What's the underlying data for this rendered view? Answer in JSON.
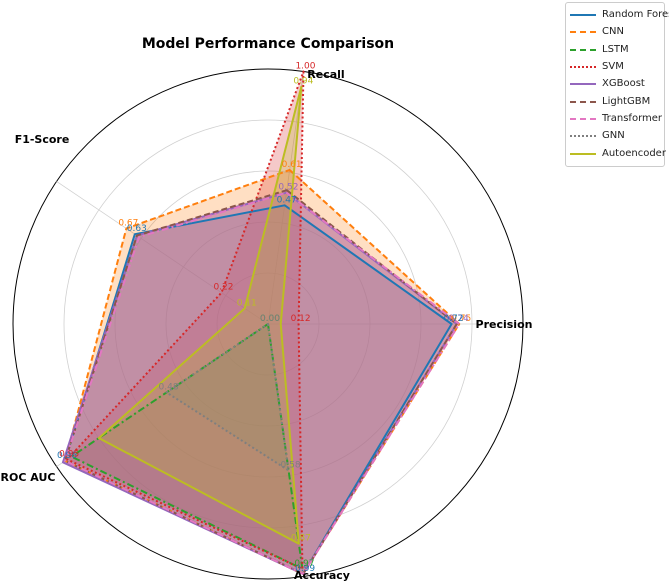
{
  "chart_data": {
    "type": "radar",
    "title": "Model Performance Comparison",
    "axes": [
      "Recall",
      "Precision",
      "Accuracy",
      "ROC AUC",
      "F1-Score"
    ],
    "rlim": [
      0,
      1
    ],
    "grid": true,
    "legend_position": "top-right",
    "series": [
      {
        "name": "Random Forest",
        "color": "#1f77b4",
        "dash": "solid",
        "values": [
          0.47,
          0.72,
          0.99,
          0.96,
          0.63
        ]
      },
      {
        "name": "CNN",
        "color": "#ff7f0e",
        "dash": "dashed",
        "values": [
          0.61,
          0.75,
          0.99,
          0.96,
          0.67
        ]
      },
      {
        "name": "LSTM",
        "color": "#2ca02c",
        "dash": "dashdot",
        "values": [
          0.0,
          0.0,
          0.97,
          0.93,
          0.0
        ]
      },
      {
        "name": "SVM",
        "color": "#d62728",
        "dash": "dotted",
        "values": [
          1.0,
          0.12,
          0.97,
          0.95,
          0.22
        ]
      },
      {
        "name": "XGBoost",
        "color": "#9467bd",
        "dash": "solid",
        "values": [
          0.52,
          0.74,
          0.99,
          0.97,
          0.62
        ]
      },
      {
        "name": "LightGBM",
        "color": "#8c564b",
        "dash": "dashed",
        "values": [
          0.53,
          0.74,
          0.99,
          0.96,
          0.62
        ]
      },
      {
        "name": "Transformer",
        "color": "#e377c2",
        "dash": "dashdot",
        "values": [
          0.52,
          0.75,
          0.99,
          0.96,
          0.61
        ]
      },
      {
        "name": "GNN",
        "color": "#7f7f7f",
        "dash": "dotted",
        "values": [
          0.0,
          0.0,
          0.58,
          0.48,
          0.0
        ]
      },
      {
        "name": "Autoencoder",
        "color": "#bcbd22",
        "dash": "solid",
        "values": [
          0.94,
          0.05,
          0.87,
          0.8,
          0.11
        ]
      }
    ],
    "value_labels": [
      {
        "axis": 0,
        "text": "1.00",
        "series": "SVM",
        "value": 1.0
      },
      {
        "axis": 0,
        "text": "0.94",
        "series": "Autoencoder",
        "value": 0.94
      },
      {
        "axis": 0,
        "text": "0.61",
        "series": "CNN",
        "value": 0.61
      },
      {
        "axis": 0,
        "text": "0.52",
        "series": "XGBoost",
        "value": 0.52
      },
      {
        "axis": 0,
        "text": "0.47",
        "series": "Random Forest",
        "value": 0.47
      },
      {
        "axis": 0,
        "text": "0.00",
        "series": "LSTM",
        "value": 0.0
      },
      {
        "axis": 0,
        "text": "0.00",
        "series": "GNN",
        "value": 0.0
      },
      {
        "axis": 1,
        "text": "0.75",
        "series": "CNN",
        "value": 0.75
      },
      {
        "axis": 1,
        "text": "0.74",
        "series": "XGBoost",
        "value": 0.74
      },
      {
        "axis": 1,
        "text": "0.72",
        "series": "Random Forest",
        "value": 0.72
      },
      {
        "axis": 1,
        "text": "0.12",
        "series": "SVM",
        "value": 0.12
      },
      {
        "axis": 2,
        "text": "0.99",
        "series": "Random Forest",
        "value": 0.99
      },
      {
        "axis": 2,
        "text": "0.97",
        "series": "LSTM",
        "value": 0.97
      },
      {
        "axis": 2,
        "text": "0.87",
        "series": "Autoencoder",
        "value": 0.87
      },
      {
        "axis": 2,
        "text": "0.58",
        "series": "GNN",
        "value": 0.58
      },
      {
        "axis": 3,
        "text": "0.96",
        "series": "Random Forest",
        "value": 0.96
      },
      {
        "axis": 3,
        "text": "0.95",
        "series": "SVM",
        "value": 0.95
      },
      {
        "axis": 3,
        "text": "0.48",
        "series": "GNN",
        "value": 0.48
      },
      {
        "axis": 4,
        "text": "0.67",
        "series": "CNN",
        "value": 0.67
      },
      {
        "axis": 4,
        "text": "0.63",
        "series": "Random Forest",
        "value": 0.63
      },
      {
        "axis": 4,
        "text": "0.22",
        "series": "SVM",
        "value": 0.22
      },
      {
        "axis": 4,
        "text": "0.11",
        "series": "Autoencoder",
        "value": 0.11
      }
    ]
  }
}
